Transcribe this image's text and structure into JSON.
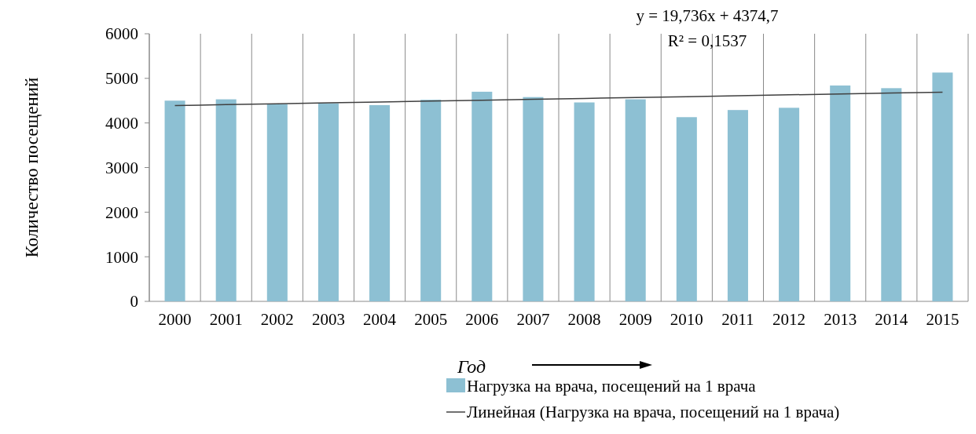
{
  "chart_data": {
    "type": "bar",
    "xlabel": "Год",
    "ylabel": "Количество посещений",
    "categories": [
      "2000",
      "2001",
      "2002",
      "2003",
      "2004",
      "2005",
      "2006",
      "2007",
      "2008",
      "2009",
      "2010",
      "2011",
      "2012",
      "2013",
      "2014",
      "2015"
    ],
    "series": [
      {
        "name": "Нагрузка на врача, посещений на 1 врача",
        "color": "#8dc0d3",
        "values": [
          4500,
          4530,
          4420,
          4440,
          4400,
          4520,
          4700,
          4580,
          4460,
          4530,
          4130,
          4290,
          4340,
          4840,
          4780,
          5130
        ]
      },
      {
        "name": "Линейная (Нагрузка на врача, посещений на 1 врача)",
        "type": "line",
        "color": "#404040",
        "values": [
          4390,
          4410,
          4430,
          4450,
          4470,
          4490,
          4510,
          4530,
          4550,
          4570,
          4590,
          4610,
          4630,
          4650,
          4670,
          4690
        ]
      }
    ],
    "ylim": [
      0,
      6000
    ],
    "yticks": [
      0,
      1000,
      2000,
      3000,
      4000,
      5000,
      6000
    ],
    "grid": "x",
    "legend": "bottom",
    "line_style": "solid",
    "marker": "none",
    "annotations": [
      "y = 19,736x + 4374,7",
      "R² = 0,1537"
    ]
  }
}
